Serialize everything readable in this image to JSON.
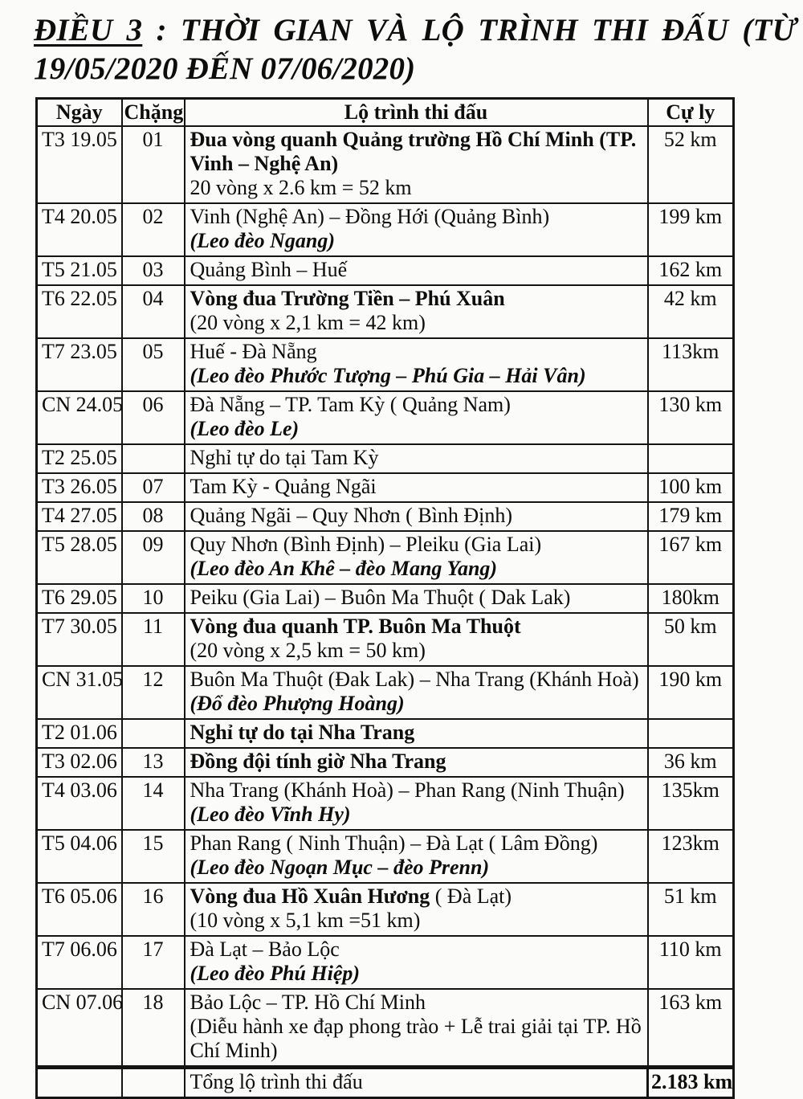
{
  "title": {
    "underlined": "ĐIỀU 3",
    "rest": " : THỜI GIAN VÀ LỘ TRÌNH THI ĐẤU (TỪ 19/05/2020 ĐẾN 07/06/2020)"
  },
  "table": {
    "headers": {
      "date": "Ngày",
      "stage": "Chặng",
      "route": "Lộ trình thi đấu",
      "distance": "Cự ly"
    },
    "rows": [
      {
        "date": "T3 19.05",
        "stage": "01",
        "distance": "52 km",
        "route": [
          [
            {
              "t": "Đua vòng quanh Quảng trường Hồ Chí Minh (TP. Vinh – Nghệ An)",
              "s": "b"
            }
          ],
          [
            {
              "t": "20 vòng x 2.6 km = 52 km",
              "s": "r"
            }
          ]
        ]
      },
      {
        "date": "T4 20.05",
        "stage": "02",
        "distance": "199 km",
        "route": [
          [
            {
              "t": "Vinh (Nghệ An) – Đồng Hới (Quảng Bình)",
              "s": "r"
            }
          ],
          [
            {
              "t": "(Leo đèo Ngang)",
              "s": "bi"
            }
          ]
        ]
      },
      {
        "date": "T5 21.05",
        "stage": "03",
        "distance": "162 km",
        "route": [
          [
            {
              "t": "Quảng Bình – Huế",
              "s": "r"
            }
          ]
        ]
      },
      {
        "date": "T6 22.05",
        "stage": "04",
        "distance": "42 km",
        "route": [
          [
            {
              "t": "Vòng đua Trường Tiền – Phú Xuân",
              "s": "b"
            }
          ],
          [
            {
              "t": "(20 vòng x 2,1 km = 42 km)",
              "s": "r"
            }
          ]
        ]
      },
      {
        "date": "T7 23.05",
        "stage": "05",
        "distance": "113km",
        "route": [
          [
            {
              "t": "Huế - Đà Nẵng",
              "s": "r"
            }
          ],
          [
            {
              "t": "(Leo đèo Phước Tượng – Phú Gia – Hải Vân)",
              "s": "bi"
            }
          ]
        ]
      },
      {
        "date": "CN 24.05",
        "stage": "06",
        "distance": "130 km",
        "route": [
          [
            {
              "t": "Đà Nẵng – TP. Tam Kỳ  ( Quảng Nam)",
              "s": "r"
            }
          ],
          [
            {
              "t": "(Leo đèo Le)",
              "s": "bi"
            }
          ]
        ]
      },
      {
        "date": "T2 25.05",
        "stage": "",
        "distance": "",
        "route": [
          [
            {
              "t": "Nghỉ tự do tại Tam Kỳ",
              "s": "r"
            }
          ]
        ]
      },
      {
        "date": "T3 26.05",
        "stage": "07",
        "distance": "100 km",
        "route": [
          [
            {
              "t": "Tam Kỳ - Quảng Ngãi",
              "s": "r"
            }
          ]
        ]
      },
      {
        "date": "T4 27.05",
        "stage": "08",
        "distance": "179 km",
        "route": [
          [
            {
              "t": "Quảng Ngãi – Quy Nhơn  ( Bình Định)",
              "s": "r"
            }
          ]
        ]
      },
      {
        "date": "T5 28.05",
        "stage": "09",
        "distance": "167 km",
        "route": [
          [
            {
              "t": "Quy Nhơn (Bình Định) – Pleiku (Gia Lai)",
              "s": "r"
            }
          ],
          [
            {
              "t": "(Leo đèo An Khê – đèo Mang Yang)",
              "s": "bi"
            }
          ]
        ]
      },
      {
        "date": "T6 29.05",
        "stage": "10",
        "distance": "180km",
        "route": [
          [
            {
              "t": "Peiku (Gia Lai) – Buôn Ma Thuột  ( Dak Lak)",
              "s": "r"
            }
          ]
        ]
      },
      {
        "date": "T7 30.05",
        "stage": "11",
        "distance": "50 km",
        "route": [
          [
            {
              "t": "Vòng đua quanh TP. Buôn Ma Thuột",
              "s": "b"
            }
          ],
          [
            {
              "t": "(20 vòng x 2,5 km = 50 km)",
              "s": "r"
            }
          ]
        ]
      },
      {
        "date": "CN 31.05",
        "stage": "12",
        "distance": "190 km",
        "route": [
          [
            {
              "t": "Buôn Ma Thuột (Đak Lak) – Nha Trang (Khánh Hoà)",
              "s": "r"
            }
          ],
          [
            {
              "t": "(Đổ đèo Phượng Hoàng)",
              "s": "bi"
            }
          ]
        ]
      },
      {
        "date": "T2 01.06",
        "stage": "",
        "distance": "",
        "route": [
          [
            {
              "t": "Nghỉ tự do tại Nha Trang",
              "s": "b"
            }
          ]
        ]
      },
      {
        "date": "T3 02.06",
        "stage": "13",
        "distance": "36 km",
        "route": [
          [
            {
              "t": "Đồng đội tính giờ Nha Trang",
              "s": "b"
            }
          ]
        ]
      },
      {
        "date": "T4 03.06",
        "stage": "14",
        "distance": "135km",
        "route": [
          [
            {
              "t": "Nha Trang (Khánh Hoà) – Phan Rang (Ninh Thuận)",
              "s": "r"
            }
          ],
          [
            {
              "t": "(Leo đèo Vĩnh Hy)",
              "s": "bi"
            }
          ]
        ]
      },
      {
        "date": "T5 04.06",
        "stage": "15",
        "distance": "123km",
        "route": [
          [
            {
              "t": "Phan Rang ( Ninh Thuận) – Đà Lạt  ( Lâm Đồng)",
              "s": "r"
            }
          ],
          [
            {
              "t": "(Leo đèo Ngoạn Mục – đèo Prenn)",
              "s": "bi"
            }
          ]
        ]
      },
      {
        "date": "T6 05.06",
        "stage": "16",
        "distance": "51 km",
        "route": [
          [
            {
              "t": "Vòng đua Hồ Xuân Hương",
              "s": "b"
            },
            {
              "t": " ( Đà Lạt)",
              "s": "r"
            }
          ],
          [
            {
              "t": "(10 vòng x 5,1 km =51 km)",
              "s": "r"
            }
          ]
        ]
      },
      {
        "date": "T7 06.06",
        "stage": "17",
        "distance": "110 km",
        "route": [
          [
            {
              "t": "Đà Lạt – Bảo Lộc",
              "s": "r"
            }
          ],
          [
            {
              "t": "(Leo đèo Phú Hiệp)",
              "s": "bi"
            }
          ]
        ]
      },
      {
        "date": "CN 07.06",
        "stage": "18",
        "distance": "163 km",
        "route": [
          [
            {
              "t": "Bảo Lộc – TP. Hồ Chí Minh",
              "s": "r"
            }
          ],
          [
            {
              "t": "(Diễu hành xe đạp phong trào + Lễ trai giải tại TP. Hồ Chí Minh)",
              "s": "r"
            }
          ]
        ]
      },
      {
        "date": "",
        "stage": "",
        "distance": "2.183 km",
        "total": true,
        "route": [
          [
            {
              "t": "Tổng lộ trình thi đấu",
              "s": "r"
            }
          ]
        ]
      }
    ]
  }
}
